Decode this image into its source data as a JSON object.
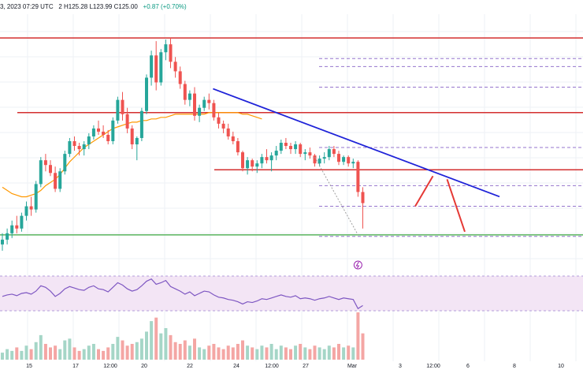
{
  "header": {
    "date_fragment": "3, 2023 07:29 UTC",
    "ohlc_fragment": "2  H125.28  L123.99  C125.00",
    "change": "+0.87 (+0.70%)"
  },
  "colors": {
    "bull": "#26a69a",
    "bear": "#ef5350",
    "resistance": "#d32f2f",
    "trendline": "#1e22d8",
    "support": "#4caf50",
    "ma": "#ff9800",
    "rsi_line": "#7e57c2",
    "rsi_band": "#f3e5f5",
    "dashed": "#9575cd",
    "forecast": "#e53935",
    "grid": "#eef1f6"
  },
  "chart_data": {
    "type": "candlestick",
    "x_ticks": [
      "15",
      "17",
      "12:00",
      "20",
      "22",
      "24",
      "12:00",
      "27",
      "Mar",
      "3",
      "12:00",
      "6",
      "8",
      "10"
    ],
    "candles": [
      [
        118.6,
        119.3,
        118.2,
        118.9
      ],
      [
        118.9,
        119.6,
        118.6,
        119.3
      ],
      [
        119.3,
        120.1,
        119.0,
        119.8
      ],
      [
        119.8,
        120.4,
        119.3,
        119.6
      ],
      [
        119.6,
        120.6,
        119.4,
        120.4
      ],
      [
        120.4,
        121.3,
        120.1,
        121.0
      ],
      [
        121.0,
        121.6,
        120.4,
        120.8
      ],
      [
        120.8,
        122.6,
        120.6,
        122.4
      ],
      [
        122.4,
        124.1,
        122.2,
        123.9
      ],
      [
        123.9,
        124.3,
        123.2,
        123.6
      ],
      [
        123.6,
        123.9,
        122.9,
        123.1
      ],
      [
        123.1,
        123.5,
        121.9,
        122.1
      ],
      [
        122.1,
        123.4,
        121.9,
        123.2
      ],
      [
        123.2,
        124.5,
        123.0,
        124.3
      ],
      [
        124.3,
        125.3,
        124.1,
        125.1
      ],
      [
        125.1,
        125.4,
        124.5,
        124.8
      ],
      [
        124.8,
        125.0,
        124.2,
        124.6
      ],
      [
        124.6,
        125.1,
        124.2,
        124.9
      ],
      [
        124.9,
        125.6,
        124.6,
        125.4
      ],
      [
        125.4,
        126.1,
        125.2,
        125.9
      ],
      [
        125.9,
        126.4,
        125.5,
        125.7
      ],
      [
        125.7,
        126.1,
        125.3,
        125.5
      ],
      [
        125.5,
        125.8,
        124.9,
        125.1
      ],
      [
        125.1,
        126.6,
        124.9,
        126.4
      ],
      [
        126.4,
        127.9,
        126.2,
        127.7
      ],
      [
        127.7,
        128.2,
        126.4,
        126.8
      ],
      [
        126.8,
        127.2,
        125.6,
        125.9
      ],
      [
        125.9,
        126.1,
        124.6,
        124.9
      ],
      [
        124.9,
        125.4,
        123.9,
        125.3
      ],
      [
        125.3,
        127.2,
        125.1,
        127.0
      ],
      [
        127.0,
        129.3,
        126.8,
        129.1
      ],
      [
        129.1,
        130.8,
        128.6,
        130.5
      ],
      [
        130.5,
        131.4,
        128.3,
        128.8
      ],
      [
        128.8,
        130.9,
        128.6,
        130.7
      ],
      [
        130.7,
        131.5,
        130.2,
        131.2
      ],
      [
        131.2,
        131.6,
        129.7,
        130.1
      ],
      [
        130.1,
        130.4,
        129.1,
        129.5
      ],
      [
        129.5,
        129.8,
        128.4,
        128.7
      ],
      [
        128.7,
        128.9,
        127.4,
        127.7
      ],
      [
        127.7,
        128.3,
        127.3,
        128.1
      ],
      [
        128.1,
        128.5,
        126.4,
        126.7
      ],
      [
        126.7,
        127.4,
        126.3,
        127.2
      ],
      [
        127.2,
        127.9,
        127.0,
        127.7
      ],
      [
        127.7,
        128.1,
        127.1,
        127.5
      ],
      [
        127.5,
        127.7,
        126.4,
        126.6
      ],
      [
        126.6,
        126.9,
        125.9,
        126.2
      ],
      [
        126.2,
        126.4,
        125.6,
        125.9
      ],
      [
        125.9,
        126.2,
        125.2,
        125.4
      ],
      [
        125.4,
        125.7,
        124.9,
        125.1
      ],
      [
        125.1,
        125.3,
        124.2,
        124.4
      ],
      [
        124.4,
        124.5,
        123.2,
        123.4
      ],
      [
        123.4,
        124.1,
        123.0,
        123.9
      ],
      [
        123.9,
        124.0,
        123.2,
        123.5
      ],
      [
        123.5,
        123.9,
        123.1,
        123.7
      ],
      [
        123.7,
        124.3,
        123.4,
        124.1
      ],
      [
        124.1,
        124.6,
        123.7,
        123.9
      ],
      [
        123.9,
        124.4,
        123.2,
        124.2
      ],
      [
        124.2,
        124.8,
        123.9,
        124.5
      ],
      [
        124.5,
        125.2,
        124.3,
        125.0
      ],
      [
        125.0,
        125.3,
        124.6,
        124.8
      ],
      [
        124.8,
        125.0,
        124.3,
        124.6
      ],
      [
        124.6,
        125.1,
        124.3,
        124.9
      ],
      [
        124.9,
        125.0,
        124.1,
        124.3
      ],
      [
        124.3,
        124.6,
        123.9,
        124.4
      ],
      [
        124.4,
        124.7,
        124.0,
        124.2
      ],
      [
        124.2,
        124.3,
        123.5,
        123.7
      ],
      [
        123.7,
        124.2,
        123.5,
        124.0
      ],
      [
        124.0,
        124.4,
        123.7,
        124.1
      ],
      [
        124.1,
        124.8,
        123.9,
        124.6
      ],
      [
        124.6,
        124.8,
        124.1,
        124.3
      ],
      [
        124.3,
        124.5,
        123.6,
        123.8
      ],
      [
        123.8,
        124.2,
        123.6,
        124.1
      ],
      [
        124.1,
        124.2,
        123.5,
        123.7
      ],
      [
        123.7,
        124.0,
        123.4,
        123.8
      ],
      [
        123.8,
        123.9,
        121.6,
        121.9
      ],
      [
        121.9,
        122.2,
        119.6,
        121.2
      ]
    ],
    "moving_average": [
      122.2,
      122.0,
      121.8,
      121.7,
      121.6,
      121.6,
      121.7,
      121.8,
      122.0,
      122.3,
      122.5,
      122.7,
      123.0,
      123.4,
      123.8,
      124.1,
      124.4,
      124.7,
      124.9,
      125.1,
      125.3,
      125.5,
      125.7,
      125.9,
      126.0,
      126.1,
      126.2,
      126.3,
      126.3,
      126.4,
      126.4,
      126.5,
      126.5,
      126.6,
      126.6,
      126.7,
      126.8,
      126.8,
      126.8,
      126.8,
      126.8,
      126.8,
      126.8,
      126.9,
      126.9,
      126.9,
      126.9,
      126.9,
      126.9,
      126.9,
      126.8,
      126.8,
      126.7,
      126.6,
      126.5
    ],
    "horizontal_levels": [
      131.6,
      126.9,
      123.3,
      119.2
    ],
    "dashed_levels": [
      130.3,
      129.8,
      128.5,
      126.9,
      124.7,
      122.3,
      121.0,
      119.1
    ],
    "trendline": {
      "from": [
        34,
        128.4
      ],
      "to": [
        97,
        122.8
      ]
    },
    "forecast_path": [
      [
        80,
        121.0
      ],
      [
        85,
        122.9
      ],
      [
        89,
        122.7
      ],
      [
        94,
        119.4
      ]
    ],
    "rsi": [
      48,
      50,
      51,
      49,
      52,
      53,
      51,
      55,
      62,
      60,
      55,
      48,
      52,
      58,
      61,
      59,
      57,
      56,
      60,
      62,
      58,
      57,
      54,
      60,
      66,
      63,
      58,
      55,
      57,
      62,
      68,
      71,
      64,
      66,
      69,
      61,
      58,
      55,
      51,
      54,
      49,
      52,
      55,
      54,
      50,
      47,
      46,
      44,
      43,
      41,
      38,
      41,
      40,
      42,
      45,
      44,
      46,
      48,
      50,
      48,
      47,
      49,
      45,
      46,
      45,
      43,
      45,
      46,
      48,
      46,
      44,
      46,
      45,
      44,
      32,
      36
    ],
    "volume": [
      4,
      6,
      5,
      7,
      5,
      8,
      6,
      10,
      14,
      9,
      7,
      8,
      6,
      11,
      12,
      7,
      5,
      6,
      8,
      9,
      6,
      5,
      7,
      9,
      13,
      11,
      8,
      9,
      10,
      12,
      16,
      22,
      24,
      15,
      18,
      14,
      10,
      9,
      11,
      8,
      12,
      7,
      6,
      8,
      9,
      7,
      6,
      8,
      7,
      9,
      11,
      8,
      7,
      6,
      8,
      7,
      9,
      6,
      8,
      7,
      6,
      8,
      9,
      7,
      6,
      8,
      7,
      6,
      8,
      7,
      9,
      7,
      8,
      7,
      27,
      15
    ]
  }
}
